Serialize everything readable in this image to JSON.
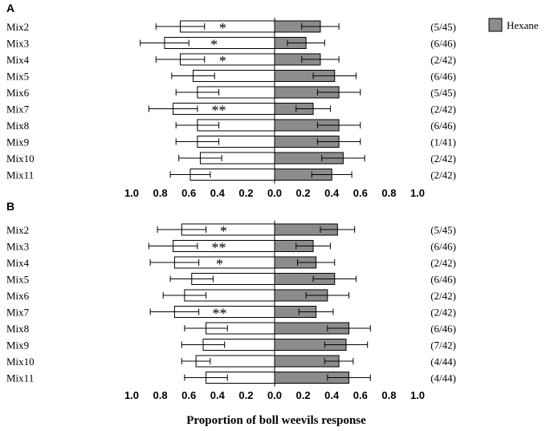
{
  "figure": {
    "xlabel": "Proportion of boll weevils response",
    "legend": {
      "label": "Hexane",
      "color": "#8c8c8c"
    }
  },
  "chart_data": [
    {
      "panel": "A",
      "type": "bar",
      "orientation": "horizontal-diverging",
      "categories": [
        "Mix2",
        "Mix3",
        "Mix4",
        "Mix5",
        "Mix6",
        "Mix7",
        "Mix8",
        "Mix9",
        "Mix10",
        "Mix11"
      ],
      "series": [
        {
          "color": "#ffffff",
          "values": [
            0.66,
            0.77,
            0.66,
            0.57,
            0.54,
            0.71,
            0.54,
            0.54,
            0.52,
            0.59
          ],
          "errors": [
            0.17,
            0.17,
            0.17,
            0.15,
            0.15,
            0.17,
            0.15,
            0.15,
            0.15,
            0.14
          ]
        },
        {
          "name": "Hexane",
          "color": "#8c8c8c",
          "values": [
            0.32,
            0.22,
            0.32,
            0.42,
            0.45,
            0.27,
            0.45,
            0.45,
            0.48,
            0.4
          ],
          "errors": [
            0.13,
            0.13,
            0.13,
            0.15,
            0.15,
            0.12,
            0.15,
            0.15,
            0.15,
            0.14
          ]
        }
      ],
      "significance": [
        "*",
        "*",
        "*",
        "",
        "",
        "**",
        "",
        "",
        "",
        ""
      ],
      "counts": [
        "(5/45)",
        "(6/46)",
        "(2/42)",
        "(6/46)",
        "(5/45)",
        "(2/42)",
        "(6/46)",
        "(1/41)",
        "(2/42)",
        "(2/42)"
      ],
      "tick_labels": [
        "1.0",
        "0.8",
        "0.6",
        "0.4",
        "0.2",
        "0.0",
        "0.2",
        "0.4",
        "0.6",
        "0.8",
        "1.0"
      ],
      "xlim": [
        -1.0,
        1.0
      ]
    },
    {
      "panel": "B",
      "type": "bar",
      "orientation": "horizontal-diverging",
      "categories": [
        "Mix2",
        "Mix3",
        "Mix4",
        "Mix5",
        "Mix6",
        "Mix7",
        "Mix8",
        "Mix9",
        "Mix10",
        "Mix11"
      ],
      "series": [
        {
          "color": "#ffffff",
          "values": [
            0.65,
            0.71,
            0.7,
            0.58,
            0.63,
            0.7,
            0.48,
            0.5,
            0.55,
            0.48
          ],
          "errors": [
            0.17,
            0.17,
            0.17,
            0.15,
            0.15,
            0.17,
            0.15,
            0.15,
            0.1,
            0.15
          ]
        },
        {
          "name": "Hexane",
          "color": "#8c8c8c",
          "values": [
            0.44,
            0.27,
            0.29,
            0.42,
            0.37,
            0.29,
            0.52,
            0.5,
            0.45,
            0.52
          ],
          "errors": [
            0.12,
            0.12,
            0.13,
            0.15,
            0.15,
            0.12,
            0.15,
            0.15,
            0.1,
            0.15
          ]
        }
      ],
      "significance": [
        "*",
        "**",
        "*",
        "",
        "",
        "**",
        "",
        "",
        "",
        ""
      ],
      "counts": [
        "(5/45)",
        "(6/46)",
        "(2/42)",
        "(6/46)",
        "(2/42)",
        "(2/42)",
        "(6/46)",
        "(7/42)",
        "(4/44)",
        "(4/44)"
      ],
      "tick_labels": [
        "1.0",
        "0.8",
        "0.6",
        "0.4",
        "0.2",
        "0.0",
        "0.2",
        "0.4",
        "0.6",
        "0.8",
        "1.0"
      ],
      "xlim": [
        -1.0,
        1.0
      ]
    }
  ]
}
